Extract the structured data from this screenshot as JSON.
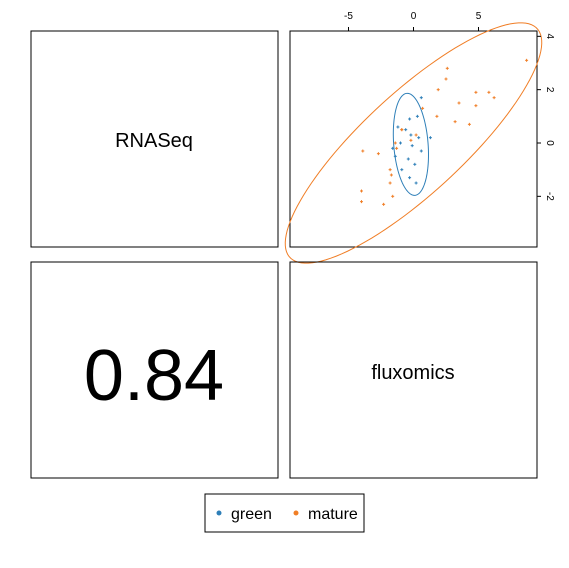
{
  "panels": {
    "top_left_label": "RNASeq",
    "bottom_left_value": "0.84",
    "bottom_right_label": "fluxomics"
  },
  "chart_data": {
    "type": "scatter",
    "title": "",
    "xlabel": "",
    "ylabel": "",
    "xlim": [
      -9.5,
      9.5
    ],
    "ylim": [
      -3.9,
      4.2
    ],
    "x_ticks": [
      -5,
      0,
      5
    ],
    "x_tick_labels": [
      "-5",
      "0",
      "5"
    ],
    "y_ticks": [
      -2,
      0,
      2,
      4
    ],
    "y_tick_labels": [
      "-2",
      "0",
      "2",
      "4"
    ],
    "grid": false,
    "series": [
      {
        "name": "green",
        "color": "#2E7FB8",
        "points": [
          {
            "x": 0.6,
            "y": 1.7
          },
          {
            "x": 0.3,
            "y": 1.0
          },
          {
            "x": -0.3,
            "y": 0.9
          },
          {
            "x": -1.2,
            "y": 0.6
          },
          {
            "x": -0.6,
            "y": 0.5
          },
          {
            "x": -0.2,
            "y": 0.3
          },
          {
            "x": 0.4,
            "y": 0.2
          },
          {
            "x": 1.3,
            "y": 0.2
          },
          {
            "x": -1.0,
            "y": 0.0
          },
          {
            "x": -0.1,
            "y": -0.1
          },
          {
            "x": 0.6,
            "y": -0.3
          },
          {
            "x": -1.4,
            "y": -0.5
          },
          {
            "x": -0.4,
            "y": -0.6
          },
          {
            "x": 0.1,
            "y": -0.8
          },
          {
            "x": -0.9,
            "y": -1.0
          },
          {
            "x": -0.3,
            "y": -1.3
          },
          {
            "x": 0.2,
            "y": -1.5
          },
          {
            "x": -1.6,
            "y": -0.2
          }
        ],
        "ellipse": {
          "cx": -0.2,
          "cy": -0.05,
          "rx": 1.3,
          "ry": 1.95,
          "angle_deg": 15
        }
      },
      {
        "name": "mature",
        "color": "#F07E26",
        "points": [
          {
            "x": 8.7,
            "y": 3.1
          },
          {
            "x": 2.6,
            "y": 2.8
          },
          {
            "x": 2.5,
            "y": 2.4
          },
          {
            "x": 4.8,
            "y": 1.9
          },
          {
            "x": 5.8,
            "y": 1.9
          },
          {
            "x": 6.2,
            "y": 1.7
          },
          {
            "x": 1.9,
            "y": 2.0
          },
          {
            "x": 3.5,
            "y": 1.5
          },
          {
            "x": 4.8,
            "y": 1.4
          },
          {
            "x": 0.7,
            "y": 1.3
          },
          {
            "x": 1.8,
            "y": 1.0
          },
          {
            "x": 3.2,
            "y": 0.8
          },
          {
            "x": 4.3,
            "y": 0.7
          },
          {
            "x": -0.9,
            "y": 0.5
          },
          {
            "x": 0.2,
            "y": 0.3
          },
          {
            "x": -1.4,
            "y": 0.0
          },
          {
            "x": -0.2,
            "y": 0.1
          },
          {
            "x": -3.9,
            "y": -0.3
          },
          {
            "x": -2.7,
            "y": -0.4
          },
          {
            "x": -1.3,
            "y": -0.2
          },
          {
            "x": -1.8,
            "y": -1.0
          },
          {
            "x": -1.7,
            "y": -1.2
          },
          {
            "x": -1.8,
            "y": -1.5
          },
          {
            "x": -4.0,
            "y": -1.8
          },
          {
            "x": -4.0,
            "y": -2.2
          },
          {
            "x": -2.3,
            "y": -2.3
          },
          {
            "x": -1.6,
            "y": -2.0
          },
          {
            "x": -0.9,
            "y": 0.5
          }
        ],
        "ellipse": {
          "cx": 0.0,
          "cy": 0.0,
          "rx": 10.6,
          "ry": 2.3,
          "angle_deg": 22
        }
      }
    ],
    "legend": {
      "position": "bottom-center",
      "entries": [
        {
          "label": "green",
          "color": "#2E7FB8"
        },
        {
          "label": "mature",
          "color": "#F07E26"
        }
      ]
    }
  }
}
